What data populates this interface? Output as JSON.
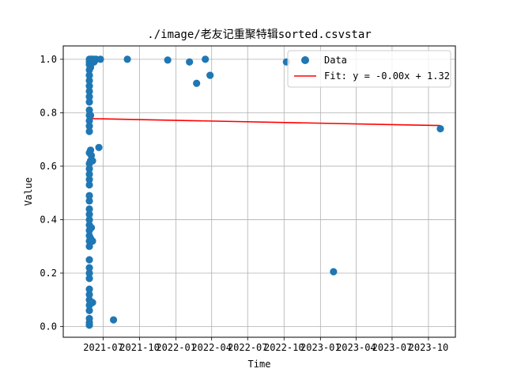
{
  "chart_data": {
    "type": "scatter",
    "title": "./image/老友记重聚特辑sorted.csvstar",
    "xlabel": "Time",
    "ylabel": "Value",
    "x_axis_type": "date",
    "xlim": [
      "2021-03-22",
      "2023-12-08"
    ],
    "ylim": [
      -0.04,
      1.05
    ],
    "grid": true,
    "legend_position": "top-right",
    "x_ticks": [
      "2021-07-01",
      "2021-10-01",
      "2022-01-01",
      "2022-04-01",
      "2022-07-01",
      "2022-10-01",
      "2023-01-01",
      "2023-04-01",
      "2023-07-01",
      "2023-10-01"
    ],
    "x_tick_labels": [
      "2021-07",
      "2021-10",
      "2022-01",
      "2022-04",
      "2022-07",
      "2022-10",
      "2023-01",
      "2023-04",
      "2023-07",
      "2023-10"
    ],
    "y_ticks": [
      0.0,
      0.2,
      0.4,
      0.6,
      0.8,
      1.0
    ],
    "y_tick_labels": [
      "0.0",
      "0.2",
      "0.4",
      "0.6",
      "0.8",
      "1.0"
    ],
    "series": [
      {
        "name": "Data",
        "kind": "scatter",
        "color": "#1f77b4",
        "points": [
          [
            "2021-05-27",
            0.005
          ],
          [
            "2021-05-27",
            0.015
          ],
          [
            "2021-05-27",
            0.03
          ],
          [
            "2021-05-27",
            0.06
          ],
          [
            "2021-05-27",
            0.08
          ],
          [
            "2021-05-27",
            0.1
          ],
          [
            "2021-05-27",
            0.12
          ],
          [
            "2021-05-27",
            0.14
          ],
          [
            "2021-05-27",
            0.18
          ],
          [
            "2021-05-27",
            0.2
          ],
          [
            "2021-05-27",
            0.22
          ],
          [
            "2021-05-27",
            0.25
          ],
          [
            "2021-05-27",
            0.3
          ],
          [
            "2021-05-27",
            0.32
          ],
          [
            "2021-05-27",
            0.34
          ],
          [
            "2021-05-27",
            0.36
          ],
          [
            "2021-05-27",
            0.38
          ],
          [
            "2021-05-27",
            0.4
          ],
          [
            "2021-05-27",
            0.42
          ],
          [
            "2021-05-27",
            0.44
          ],
          [
            "2021-05-27",
            0.47
          ],
          [
            "2021-05-27",
            0.49
          ],
          [
            "2021-05-27",
            0.53
          ],
          [
            "2021-05-27",
            0.55
          ],
          [
            "2021-05-27",
            0.57
          ],
          [
            "2021-05-27",
            0.59
          ],
          [
            "2021-05-27",
            0.61
          ],
          [
            "2021-05-27",
            0.65
          ],
          [
            "2021-05-27",
            0.73
          ],
          [
            "2021-05-27",
            0.75
          ],
          [
            "2021-05-27",
            0.77
          ],
          [
            "2021-05-27",
            0.79
          ],
          [
            "2021-05-27",
            0.81
          ],
          [
            "2021-05-27",
            0.84
          ],
          [
            "2021-05-27",
            0.86
          ],
          [
            "2021-05-27",
            0.88
          ],
          [
            "2021-05-27",
            0.9
          ],
          [
            "2021-05-27",
            0.92
          ],
          [
            "2021-05-27",
            0.94
          ],
          [
            "2021-05-27",
            0.96
          ],
          [
            "2021-05-27",
            0.98
          ],
          [
            "2021-05-27",
            0.99
          ],
          [
            "2021-05-27",
            1.0
          ],
          [
            "2021-05-30",
            0.09
          ],
          [
            "2021-05-30",
            0.33
          ],
          [
            "2021-05-30",
            0.62
          ],
          [
            "2021-05-30",
            0.66
          ],
          [
            "2021-05-30",
            0.79
          ],
          [
            "2021-05-30",
            0.97
          ],
          [
            "2021-05-30",
            0.995
          ],
          [
            "2021-05-30",
            1.0
          ],
          [
            "2021-06-01",
            0.37
          ],
          [
            "2021-06-01",
            0.64
          ],
          [
            "2021-06-01",
            0.985
          ],
          [
            "2021-06-01",
            1.0
          ],
          [
            "2021-06-04",
            0.09
          ],
          [
            "2021-06-04",
            0.32
          ],
          [
            "2021-06-04",
            0.62
          ],
          [
            "2021-06-04",
            0.99
          ],
          [
            "2021-06-04",
            1.0
          ],
          [
            "2021-06-08",
            0.99
          ],
          [
            "2021-06-08",
            1.0
          ],
          [
            "2021-06-13",
            1.0
          ],
          [
            "2021-06-20",
            0.67
          ],
          [
            "2021-06-24",
            1.0
          ],
          [
            "2021-07-27",
            0.025
          ],
          [
            "2021-08-31",
            1.0
          ],
          [
            "2021-12-11",
            0.997
          ],
          [
            "2022-02-04",
            0.99
          ],
          [
            "2022-02-22",
            0.91
          ],
          [
            "2022-03-16",
            1.0
          ],
          [
            "2022-03-28",
            0.94
          ],
          [
            "2022-10-07",
            0.99
          ],
          [
            "2023-02-03",
            0.205
          ],
          [
            "2023-10-31",
            0.74
          ]
        ]
      },
      {
        "name": "Fit: y = -0.00x + 1.32",
        "kind": "line",
        "color": "#ff0000",
        "points": [
          [
            "2021-05-27",
            0.778
          ],
          [
            "2023-10-31",
            0.752
          ]
        ]
      }
    ]
  }
}
